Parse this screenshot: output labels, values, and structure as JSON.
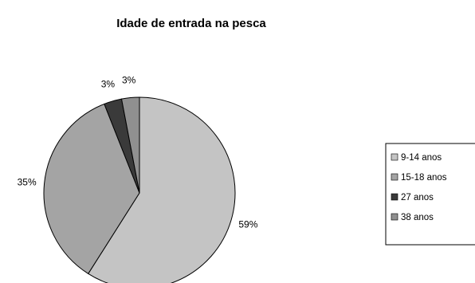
{
  "chart_data": {
    "type": "pie",
    "title": "Idade de entrada na pesca",
    "categories": [
      "9-14 anos",
      "15-18 anos",
      "27 anos",
      "38 anos"
    ],
    "values": [
      59,
      35,
      3,
      3
    ],
    "value_labels": [
      "59%",
      "35%",
      "3%",
      "3%"
    ],
    "colors": [
      "#c4c4c4",
      "#a4a4a4",
      "#3a3a3a",
      "#909090"
    ],
    "legend_position": "right"
  }
}
